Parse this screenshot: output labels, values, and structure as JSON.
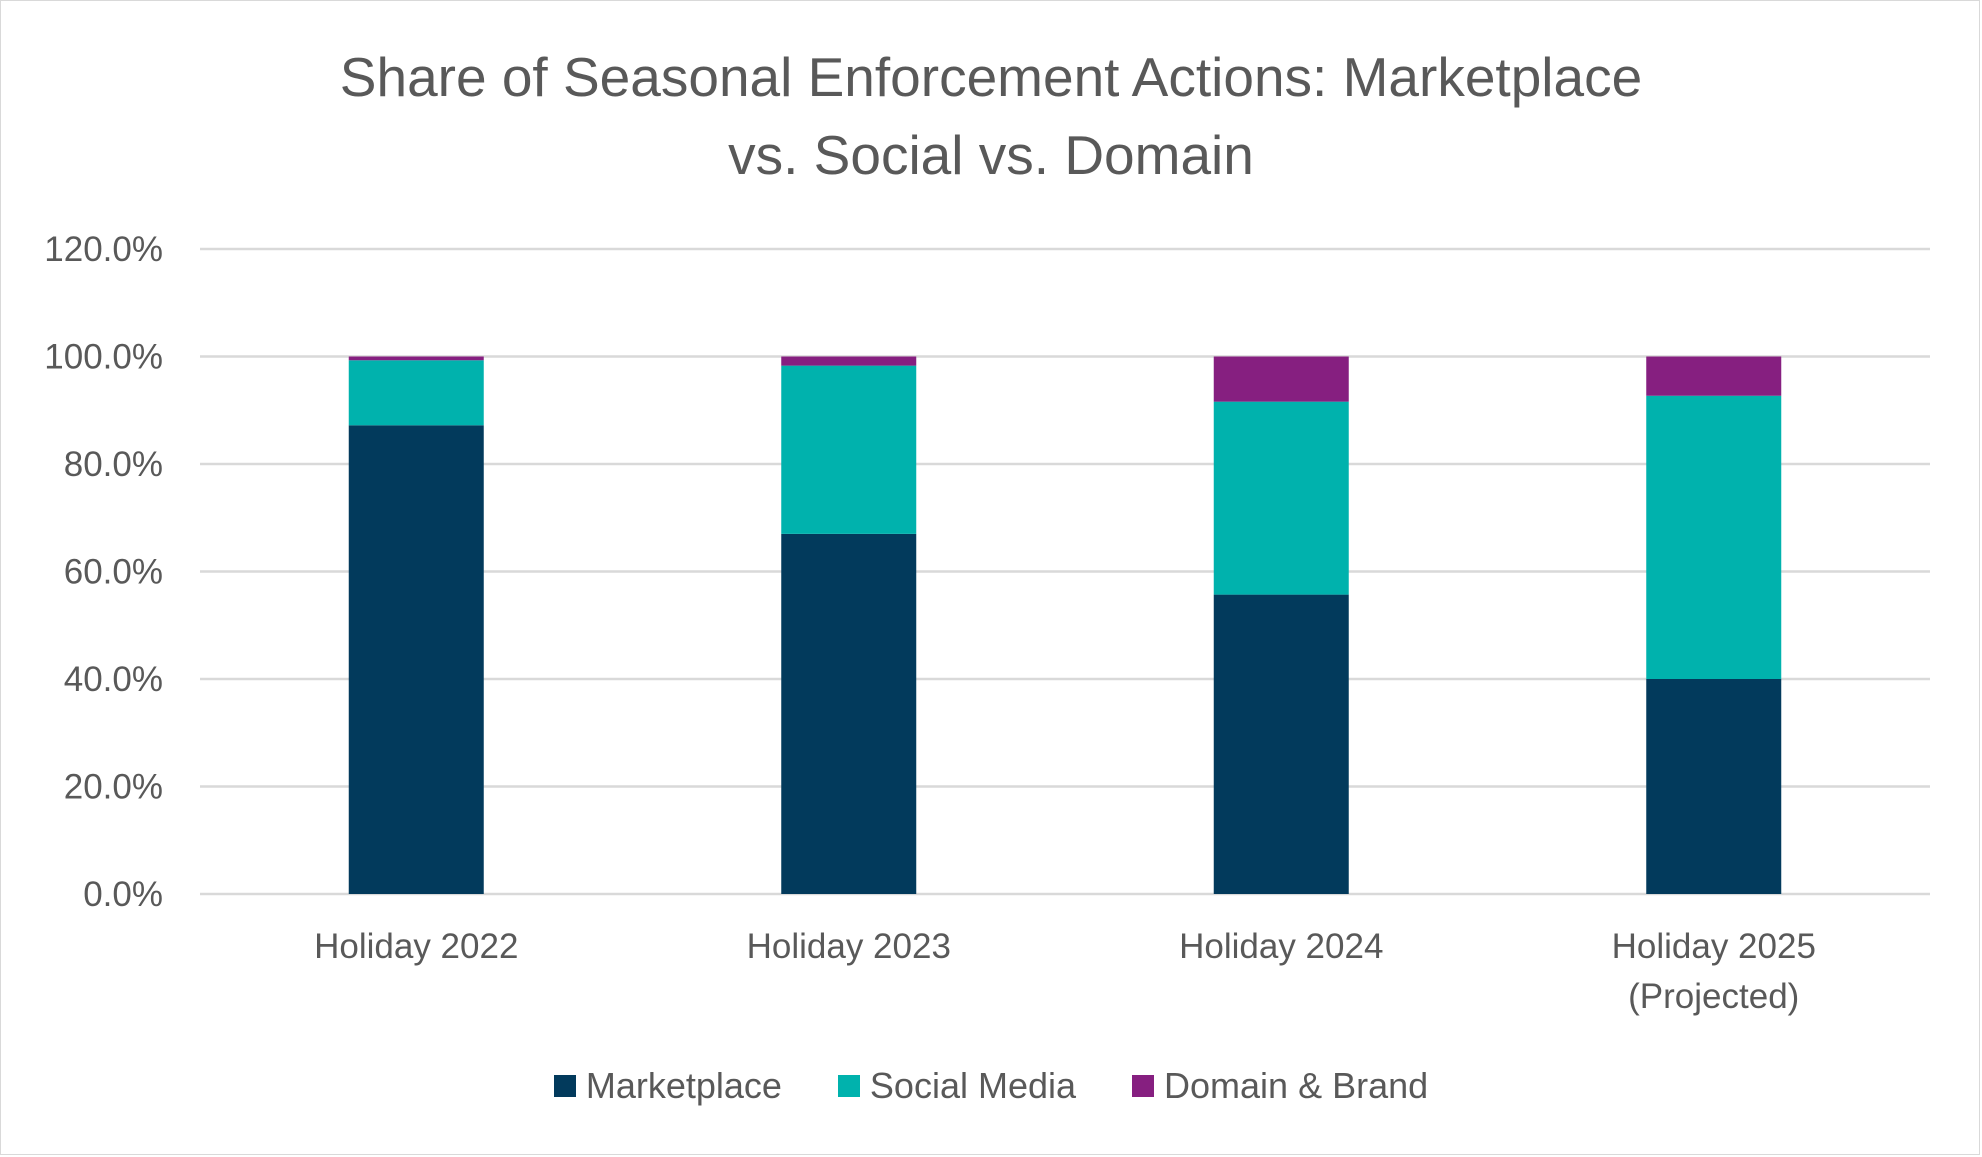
{
  "chart_data": {
    "type": "bar",
    "stacked": true,
    "title": "Share of Seasonal Enforcement Actions: Marketplace vs. Social vs. Domain",
    "title_lines": [
      "Share of Seasonal Enforcement Actions: Marketplace",
      "vs. Social vs. Domain"
    ],
    "xlabel": "",
    "ylabel": "",
    "categories": [
      [
        "Holiday 2022"
      ],
      [
        "Holiday 2023"
      ],
      [
        "Holiday 2024"
      ],
      [
        "Holiday 2025",
        "(Projected)"
      ]
    ],
    "series": [
      {
        "name": "Marketplace",
        "color": "#023A5C",
        "values": [
          87.2,
          67.0,
          55.7,
          40.0
        ]
      },
      {
        "name": "Social Media",
        "color": "#00B2AD",
        "values": [
          12.1,
          31.3,
          35.9,
          52.7
        ]
      },
      {
        "name": "Domain & Brand",
        "color": "#861F80",
        "values": [
          0.7,
          1.7,
          8.4,
          7.3
        ]
      }
    ],
    "ylim": [
      0,
      120
    ],
    "yticks": [
      0,
      20,
      40,
      60,
      80,
      100,
      120
    ],
    "ytick_labels": [
      "0.0%",
      "20.0%",
      "40.0%",
      "60.0%",
      "80.0%",
      "100.0%",
      "120.0%"
    ],
    "grid": true,
    "legend_position": "bottom"
  }
}
